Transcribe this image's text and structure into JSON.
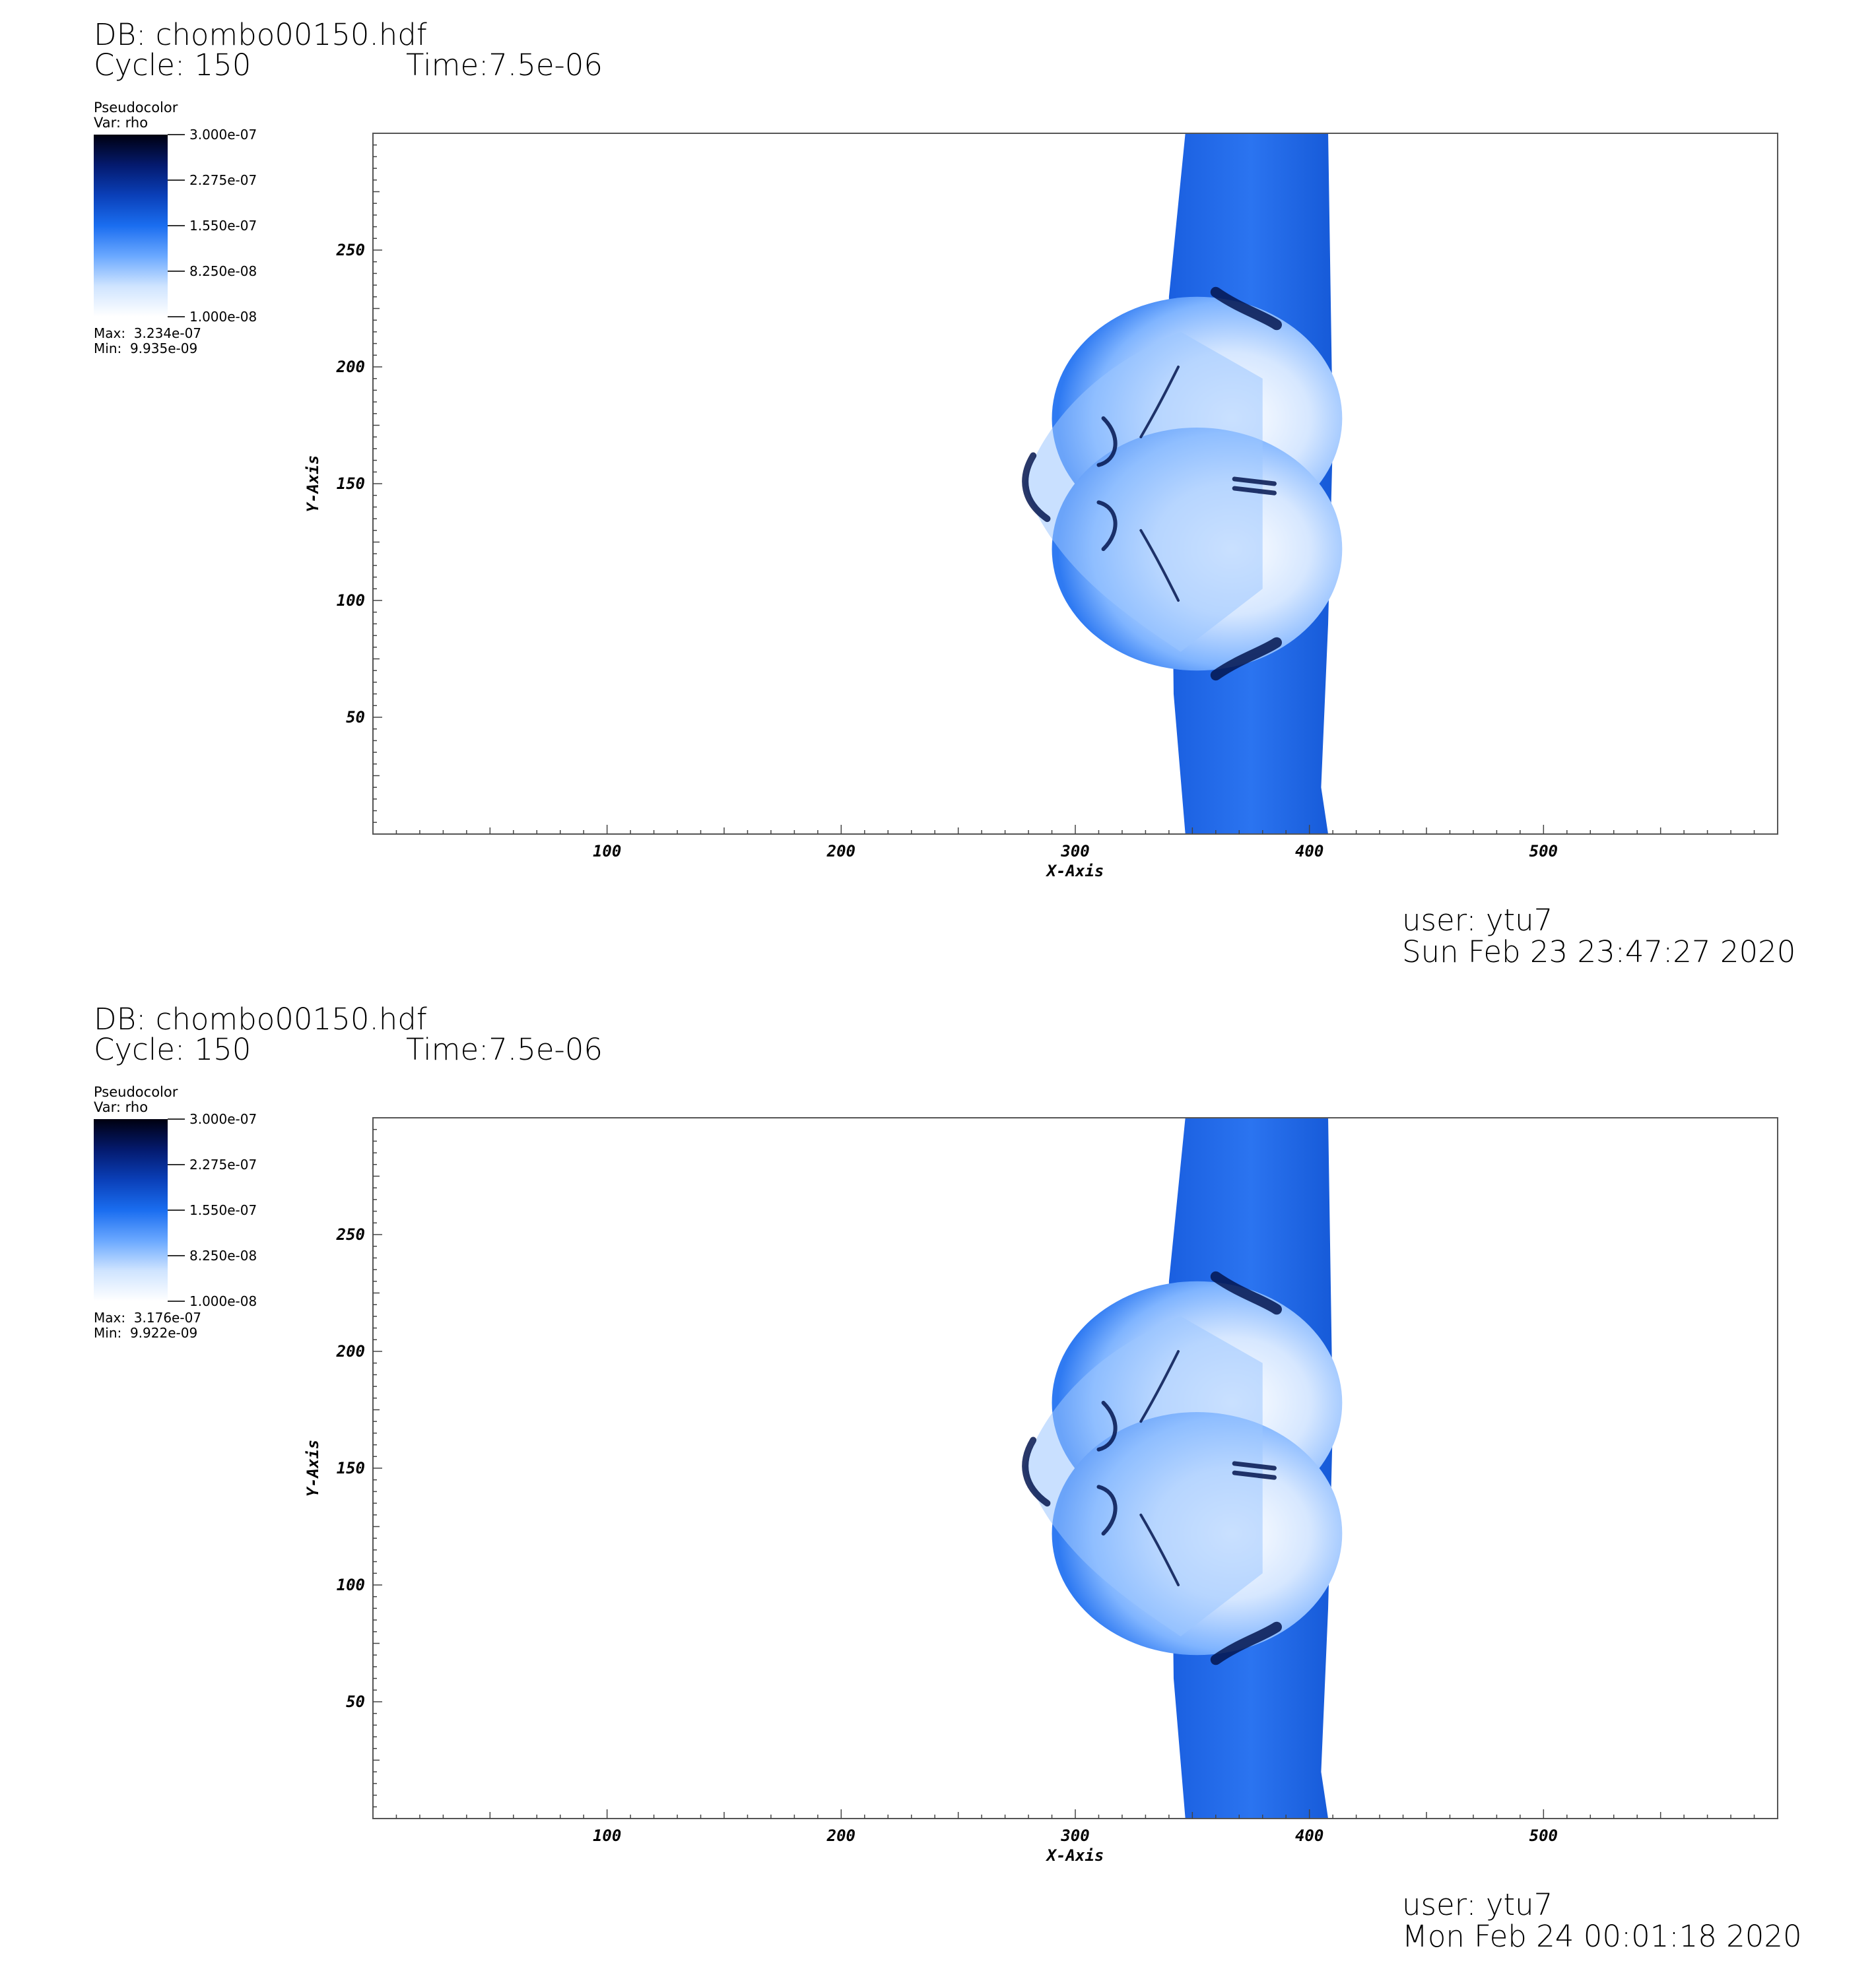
{
  "panels": [
    {
      "db": "DB: chombo00150.hdf",
      "cycle": "Cycle: 150",
      "time": "Time:7.5e-06",
      "legend": {
        "plot_type": "Pseudocolor",
        "var": "Var: rho",
        "tick_labels": [
          "3.000e-07",
          "2.275e-07",
          "1.550e-07",
          "8.250e-08",
          "1.000e-08"
        ],
        "max": "Max:  3.234e-07",
        "min": "Min:  9.935e-09"
      },
      "user": "user: ytu7",
      "date": "Sun Feb 23 23:47:27 2020"
    },
    {
      "db": "DB: chombo00150.hdf",
      "cycle": "Cycle: 150",
      "time": "Time:7.5e-06",
      "legend": {
        "plot_type": "Pseudocolor",
        "var": "Var: rho",
        "tick_labels": [
          "3.000e-07",
          "2.275e-07",
          "1.550e-07",
          "8.250e-08",
          "1.000e-08"
        ],
        "max": "Max:  3.176e-07",
        "min": "Min:  9.922e-09"
      },
      "user": "user: ytu7",
      "date": "Mon Feb 24 00:01:18 2020"
    }
  ],
  "colors": {
    "colormap": [
      "#ffffff",
      "#cfe4ff",
      "#6aa8ff",
      "#1a6df0",
      "#0a3fb8",
      "#041a6e",
      "#000010"
    ],
    "plot_fill": "#2a6ee6",
    "light_fill": "#d6e7ff",
    "dark_feature": "#03154f"
  },
  "chart_data": [
    {
      "type": "heatmap",
      "title": "",
      "variable": "rho",
      "xlabel": "X-Axis",
      "ylabel": "Y-Axis",
      "xlim": [
        0,
        600
      ],
      "ylim": [
        0,
        300
      ],
      "xticks": [
        100,
        200,
        300,
        400,
        500
      ],
      "yticks": [
        50,
        100,
        150,
        200,
        250
      ],
      "color_range": [
        1e-08,
        3e-07
      ],
      "data_max": 3.234e-07,
      "data_min": 9.935e-09,
      "grid": false
    },
    {
      "type": "heatmap",
      "title": "",
      "variable": "rho",
      "xlabel": "X-Axis",
      "ylabel": "Y-Axis",
      "xlim": [
        0,
        600
      ],
      "ylim": [
        0,
        300
      ],
      "xticks": [
        100,
        200,
        300,
        400,
        500
      ],
      "yticks": [
        50,
        100,
        150,
        200,
        250
      ],
      "color_range": [
        1e-08,
        3e-07
      ],
      "data_max": 3.176e-07,
      "data_min": 9.922e-09,
      "grid": false
    }
  ]
}
